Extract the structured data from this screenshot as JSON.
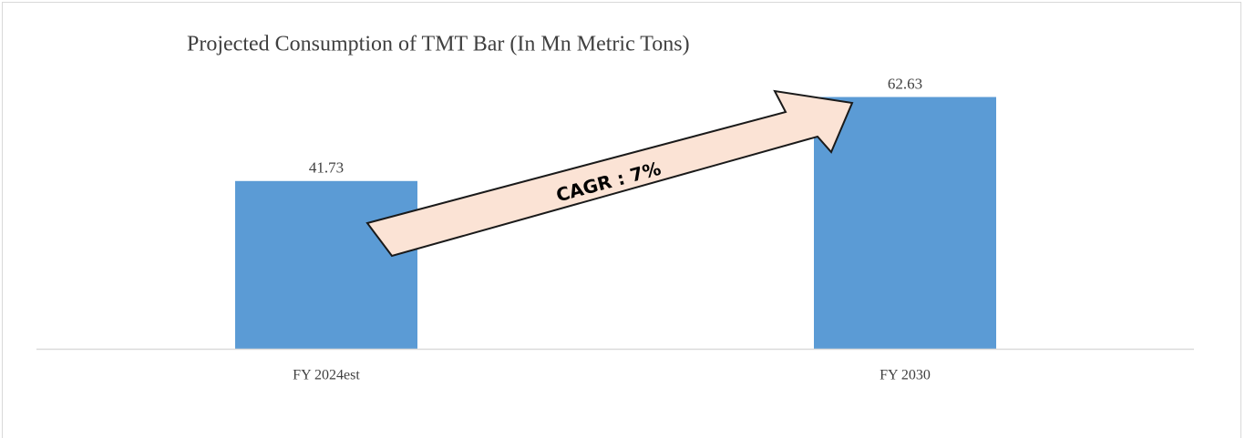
{
  "chart_data": {
    "type": "bar",
    "title": "Projected Consumption of TMT Bar (In Mn Metric Tons)",
    "categories": [
      "FY 2024est",
      "FY 2030"
    ],
    "values": [
      41.73,
      62.63
    ],
    "color": "#5b9bd5",
    "ylim": [
      0,
      70
    ],
    "annotation": "CAGR : 7%"
  }
}
